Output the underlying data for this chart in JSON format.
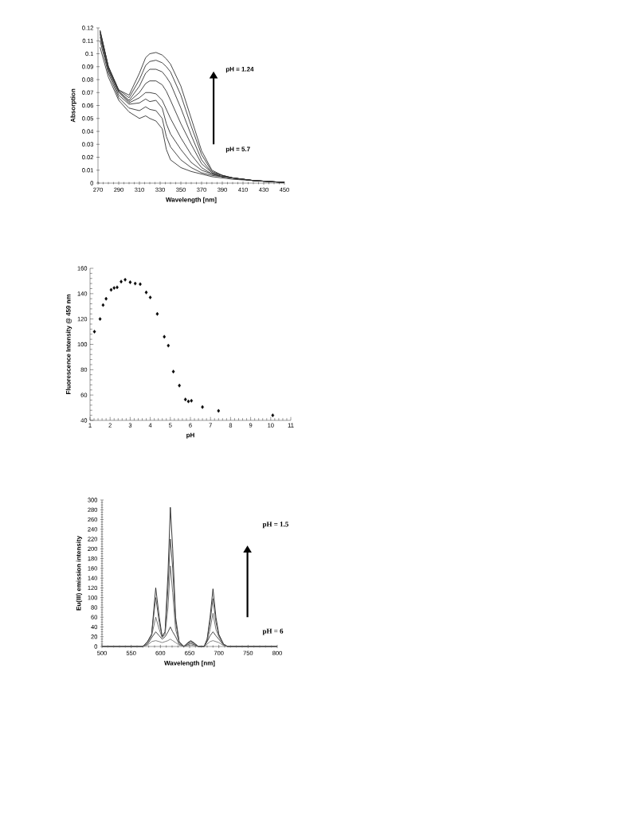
{
  "chart_data": [
    {
      "type": "line",
      "xlabel": "Wavelength [nm]",
      "ylabel": "Absorption",
      "x": [
        272,
        280,
        290,
        300,
        310,
        316,
        320,
        326,
        332,
        336,
        340,
        350,
        360,
        370,
        380,
        390,
        400,
        420,
        450
      ],
      "xlim": [
        270,
        450
      ],
      "xticks": [
        270,
        290,
        310,
        330,
        350,
        370,
        390,
        410,
        430,
        450
      ],
      "ylim": [
        0,
        0.12
      ],
      "yticks": [
        0,
        0.01,
        0.02,
        0.03,
        0.04,
        0.05,
        0.06,
        0.07,
        0.08,
        0.09,
        0.1,
        0.11,
        0.12
      ],
      "series": [
        {
          "color": "#333333",
          "values": [
            0.118,
            0.09,
            0.072,
            0.068,
            0.085,
            0.097,
            0.1,
            0.101,
            0.099,
            0.096,
            0.092,
            0.075,
            0.05,
            0.025,
            0.01,
            0.006,
            0.004,
            0.002,
            0.0005
          ]
        },
        {
          "color": "#333333",
          "values": [
            0.118,
            0.09,
            0.072,
            0.066,
            0.08,
            0.091,
            0.094,
            0.095,
            0.093,
            0.09,
            0.086,
            0.068,
            0.044,
            0.022,
            0.009,
            0.006,
            0.004,
            0.002,
            0.0005
          ]
        },
        {
          "color": "#333333",
          "values": [
            0.117,
            0.09,
            0.071,
            0.064,
            0.075,
            0.085,
            0.088,
            0.088,
            0.086,
            0.082,
            0.077,
            0.058,
            0.037,
            0.018,
            0.008,
            0.006,
            0.004,
            0.002,
            0.0005
          ]
        },
        {
          "color": "#333333",
          "values": [
            0.116,
            0.089,
            0.071,
            0.063,
            0.07,
            0.077,
            0.079,
            0.079,
            0.076,
            0.071,
            0.064,
            0.046,
            0.03,
            0.015,
            0.008,
            0.005,
            0.004,
            0.002,
            0.0005
          ]
        },
        {
          "color": "#333333",
          "values": [
            0.115,
            0.088,
            0.07,
            0.062,
            0.066,
            0.07,
            0.07,
            0.069,
            0.064,
            0.057,
            0.05,
            0.035,
            0.022,
            0.012,
            0.007,
            0.005,
            0.004,
            0.002,
            0.0005
          ]
        },
        {
          "color": "#333333",
          "values": [
            0.113,
            0.087,
            0.068,
            0.061,
            0.062,
            0.065,
            0.063,
            0.064,
            0.058,
            0.046,
            0.038,
            0.026,
            0.016,
            0.01,
            0.007,
            0.005,
            0.004,
            0.002,
            0.0005
          ]
        },
        {
          "color": "#333333",
          "values": [
            0.11,
            0.085,
            0.066,
            0.058,
            0.056,
            0.059,
            0.057,
            0.056,
            0.05,
            0.036,
            0.028,
            0.018,
            0.012,
            0.008,
            0.006,
            0.005,
            0.004,
            0.002,
            0.0005
          ]
        },
        {
          "color": "#333333",
          "values": [
            0.105,
            0.082,
            0.064,
            0.055,
            0.05,
            0.052,
            0.05,
            0.048,
            0.042,
            0.026,
            0.018,
            0.012,
            0.009,
            0.007,
            0.005,
            0.004,
            0.003,
            0.002,
            0.0005
          ]
        }
      ],
      "annotations": [
        "pH = 1.24",
        "pH = 5.7"
      ]
    },
    {
      "type": "scatter",
      "xlabel": "pH",
      "ylabel": "Fluorescence Intensity @ 459 nm",
      "marker": "diamond",
      "color": "#000000",
      "x": [
        1.22,
        1.5,
        1.65,
        1.8,
        2.05,
        2.2,
        2.35,
        2.55,
        2.75,
        3.0,
        3.25,
        3.5,
        3.8,
        4.0,
        4.35,
        4.7,
        4.9,
        5.15,
        5.45,
        5.75,
        5.9,
        6.05,
        6.6,
        7.4,
        10.1
      ],
      "values": [
        110,
        120,
        131,
        136,
        143,
        144.5,
        145,
        149.5,
        151,
        149,
        148,
        147.5,
        141,
        137,
        124,
        106,
        99,
        78.5,
        67.5,
        56.5,
        55,
        55.5,
        50.5,
        47.5,
        44
      ],
      "xlim": [
        1,
        11
      ],
      "xticks": [
        1,
        2,
        3,
        4,
        5,
        6,
        7,
        8,
        9,
        10,
        11
      ],
      "ylim": [
        40,
        160
      ],
      "yticks": [
        40,
        60,
        80,
        100,
        120,
        140,
        160
      ]
    },
    {
      "type": "line",
      "xlabel": "Wavelength [nm]",
      "ylabel": "Eu(III) emission intensity",
      "x": [
        500,
        570,
        578,
        585,
        592,
        598,
        603,
        608,
        613,
        617,
        621,
        626,
        632,
        640,
        647,
        652,
        657,
        665,
        675,
        680,
        685,
        690,
        695,
        700,
        708,
        715,
        800
      ],
      "xlim": [
        500,
        800
      ],
      "xticks": [
        500,
        550,
        600,
        650,
        700,
        750,
        800
      ],
      "ylim": [
        0,
        300
      ],
      "yticks": [
        0,
        20,
        40,
        60,
        80,
        100,
        120,
        140,
        160,
        180,
        200,
        220,
        240,
        260,
        280,
        300
      ],
      "series": [
        {
          "color": "#222222",
          "values": [
            0,
            0,
            10,
            25,
            120,
            60,
            20,
            30,
            150,
            285,
            200,
            60,
            10,
            0,
            8,
            12,
            8,
            0,
            0,
            15,
            60,
            118,
            60,
            25,
            5,
            0,
            0
          ]
        },
        {
          "color": "#444444",
          "values": [
            0,
            0,
            10,
            25,
            100,
            50,
            20,
            30,
            120,
            220,
            160,
            50,
            10,
            0,
            7,
            10,
            7,
            0,
            0,
            15,
            50,
            98,
            50,
            22,
            5,
            0,
            0
          ]
        },
        {
          "color": "#666666",
          "values": [
            0,
            0,
            8,
            22,
            60,
            35,
            18,
            25,
            80,
            165,
            110,
            35,
            8,
            0,
            6,
            9,
            6,
            0,
            0,
            12,
            35,
            68,
            35,
            20,
            4,
            0,
            0
          ]
        },
        {
          "color": "#333333",
          "values": [
            0,
            0,
            5,
            18,
            30,
            22,
            15,
            20,
            30,
            40,
            30,
            20,
            5,
            0,
            4,
            6,
            4,
            0,
            0,
            10,
            22,
            30,
            22,
            15,
            3,
            0,
            0
          ]
        },
        {
          "color": "#777777",
          "values": [
            0,
            0,
            3,
            10,
            12,
            10,
            8,
            10,
            12,
            15,
            12,
            8,
            3,
            0,
            2,
            3,
            2,
            0,
            0,
            5,
            10,
            12,
            10,
            8,
            2,
            0,
            0
          ]
        }
      ],
      "annotations": [
        "pH = 1.5",
        "pH = 6"
      ]
    }
  ]
}
